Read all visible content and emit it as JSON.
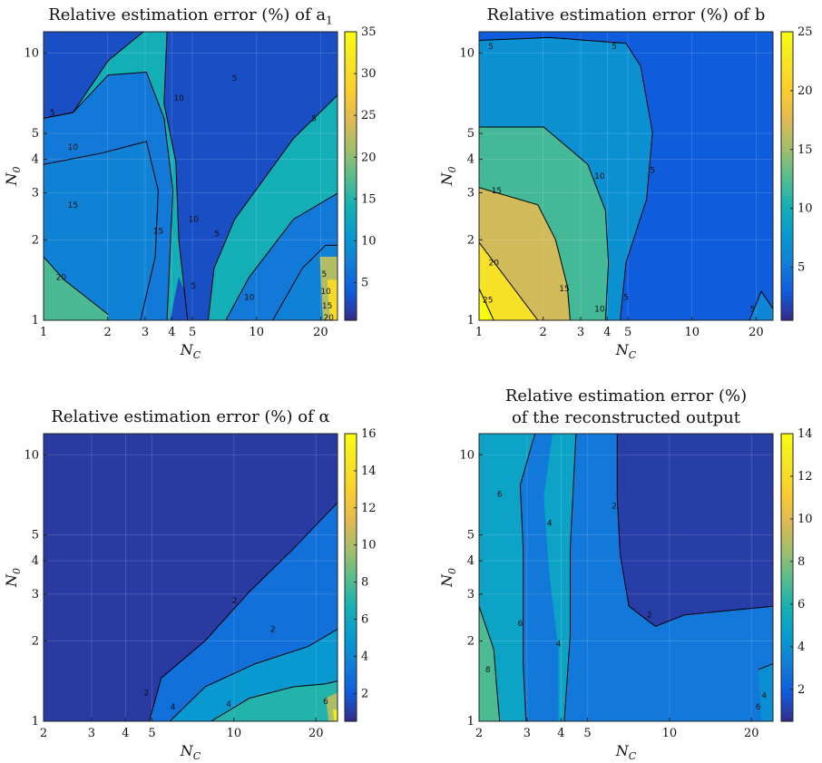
{
  "chart_data": [
    {
      "type": "heatmap",
      "title": "Relative estimation error (%) of a",
      "title_sub": "1",
      "xlabel": "N_C",
      "ylabel": "N_0",
      "xscale": "log",
      "yscale": "log",
      "xlim": [
        1,
        24
      ],
      "ylim": [
        1,
        12
      ],
      "xticks": [
        1,
        2,
        3,
        4,
        5,
        10,
        20
      ],
      "yticks": [
        1,
        2,
        3,
        4,
        5,
        10
      ],
      "colorbar": {
        "ticks": [
          5,
          10,
          15,
          20,
          25,
          30,
          35
        ],
        "range": [
          0.5,
          35
        ]
      },
      "contour_levels": [
        5,
        10,
        15,
        20,
        25,
        30
      ],
      "contour_labels": [
        "5",
        "5",
        "5",
        "5",
        "5",
        "10",
        "10",
        "10",
        "10",
        "15",
        "15",
        "20",
        "5",
        "10",
        "15",
        "20"
      ]
    },
    {
      "type": "heatmap",
      "title": "Relative estimation error (%) of b",
      "xlabel": "N_C",
      "ylabel": "N_0",
      "xscale": "log",
      "yscale": "log",
      "xlim": [
        1,
        24
      ],
      "ylim": [
        1,
        12
      ],
      "xticks": [
        1,
        2,
        3,
        4,
        5,
        10,
        20
      ],
      "yticks": [
        1,
        2,
        3,
        4,
        5,
        10
      ],
      "colorbar": {
        "ticks": [
          5,
          10,
          15,
          20,
          25
        ],
        "range": [
          0.5,
          25
        ]
      },
      "contour_levels": [
        5,
        10,
        15,
        20,
        25
      ],
      "contour_labels": [
        "5",
        "5",
        "5",
        "10",
        "10",
        "15",
        "15",
        "20",
        "25",
        "5",
        "5"
      ]
    },
    {
      "type": "heatmap",
      "title": "Relative estimation error (%) of α",
      "xlabel": "N_C",
      "ylabel": "N_0",
      "xscale": "log",
      "yscale": "log",
      "xlim": [
        2,
        24
      ],
      "ylim": [
        1,
        12
      ],
      "xticks": [
        2,
        3,
        4,
        5,
        10,
        20
      ],
      "yticks": [
        1,
        2,
        3,
        4,
        5,
        10
      ],
      "colorbar": {
        "ticks": [
          2,
          4,
          6,
          8,
          10,
          12,
          14,
          16
        ],
        "range": [
          0.5,
          16
        ]
      },
      "contour_levels": [
        2,
        4,
        6,
        8,
        10,
        12,
        14
      ],
      "contour_labels": [
        "2",
        "2",
        "2",
        "4",
        "4",
        "6"
      ]
    },
    {
      "type": "heatmap",
      "title": "Relative estimation error (%)",
      "title_line2": "of the reconstructed output",
      "xlabel": "N_C",
      "ylabel": "N_0",
      "xscale": "log",
      "yscale": "log",
      "xlim": [
        2,
        24
      ],
      "ylim": [
        1,
        12
      ],
      "xticks": [
        2,
        3,
        4,
        5,
        10,
        20
      ],
      "yticks": [
        1,
        2,
        3,
        4,
        5,
        10
      ],
      "colorbar": {
        "ticks": [
          2,
          4,
          6,
          8,
          10,
          12,
          14
        ],
        "range": [
          0.5,
          14
        ]
      },
      "contour_levels": [
        2,
        4,
        6,
        8
      ],
      "contour_labels": [
        "6",
        "6",
        "8",
        "4",
        "4",
        "2",
        "2",
        "4",
        "6"
      ]
    }
  ]
}
